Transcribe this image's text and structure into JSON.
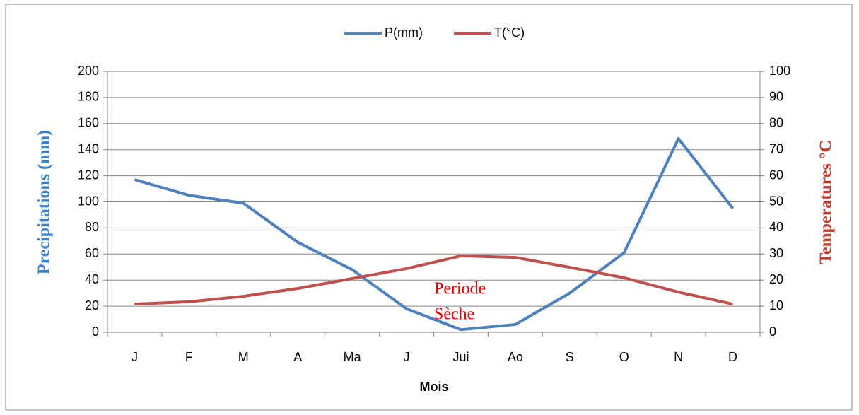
{
  "chart_data": {
    "type": "line",
    "x_label": "Mois",
    "y_label": "Precipitations (mm)",
    "y2_label": "Temperatures °C",
    "annotations": [
      "Periode",
      "Sèche"
    ],
    "categories": [
      "J",
      "F",
      "M",
      "A",
      "Ma",
      "J",
      "Jui",
      "Ao",
      "S",
      "O",
      "N",
      "D"
    ],
    "series": [
      {
        "name": "P(mm)",
        "color": "#4f81bd",
        "values": [
          117,
          105,
          99,
          69,
          48,
          18,
          2,
          6,
          30,
          61,
          148.5,
          95
        ]
      },
      {
        "name": "T(°C)",
        "color": "#c0504d",
        "axis": "y2",
        "values": [
          10.8,
          11.7,
          13.8,
          16.8,
          20.6,
          24.4,
          29.3,
          28.7,
          24.9,
          20.9,
          15.4,
          10.8
        ]
      }
    ],
    "ylim": [
      0,
      200
    ],
    "yticks": [
      0,
      20,
      40,
      60,
      80,
      100,
      120,
      140,
      160,
      180,
      200
    ],
    "y2lim": [
      0,
      100
    ],
    "y2ticks": [
      0,
      10,
      20,
      30,
      40,
      50,
      60,
      70,
      80,
      90,
      100
    ],
    "grid": true,
    "legend": "top"
  }
}
